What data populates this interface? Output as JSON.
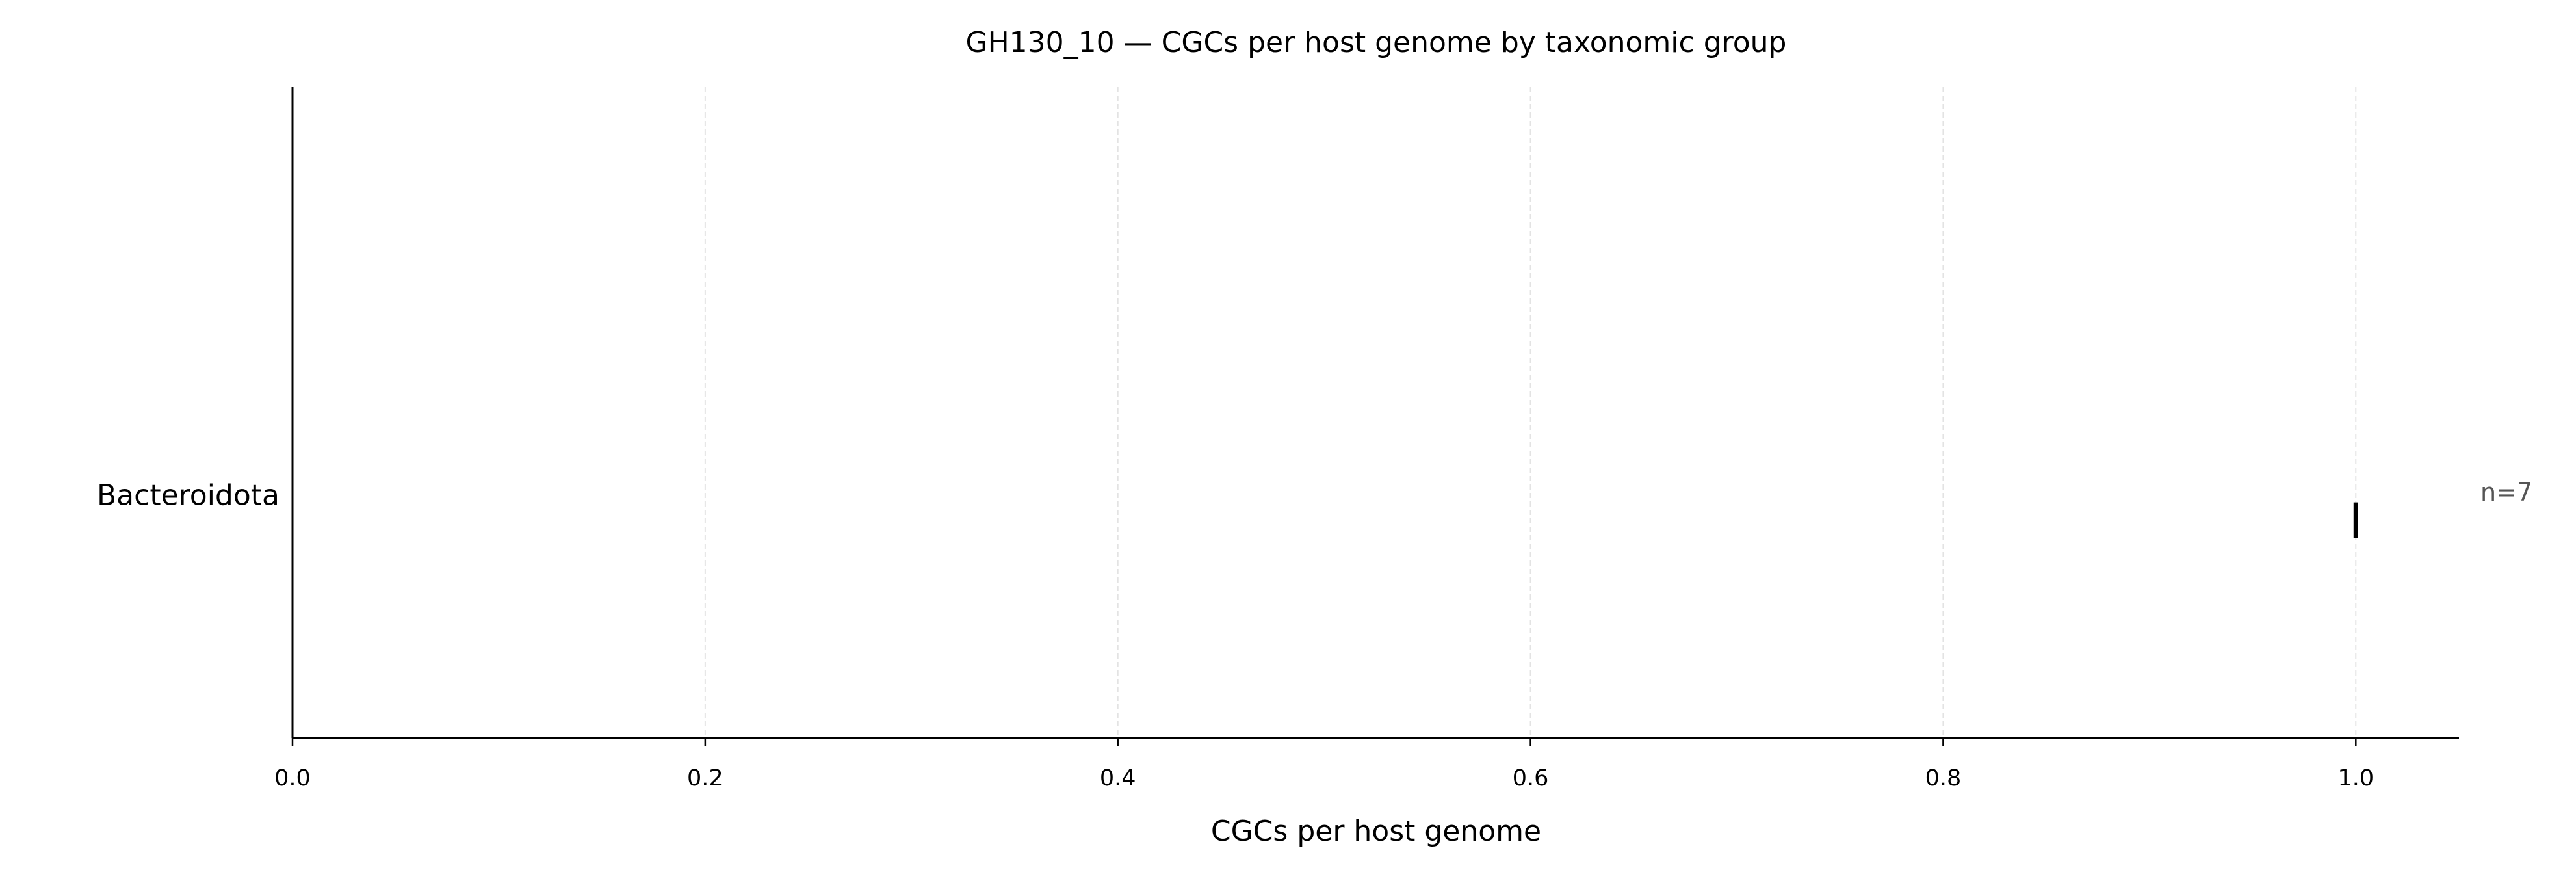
{
  "chart_data": {
    "type": "box",
    "title": "GH130_10 — CGCs per host genome by taxonomic group",
    "x_label": "CGCs per host genome",
    "categories": [
      "Bacteroidota"
    ],
    "values": [
      1
    ],
    "annotations": [
      "n=7"
    ],
    "color": "#000000",
    "xlim": [
      0,
      1.05
    ],
    "xticks": [
      {
        "value": 0,
        "label": "0.0"
      },
      0.2,
      0.4,
      0.6,
      0.8,
      {
        "value": 1,
        "label": "1.0"
      }
    ],
    "grid": true
  }
}
